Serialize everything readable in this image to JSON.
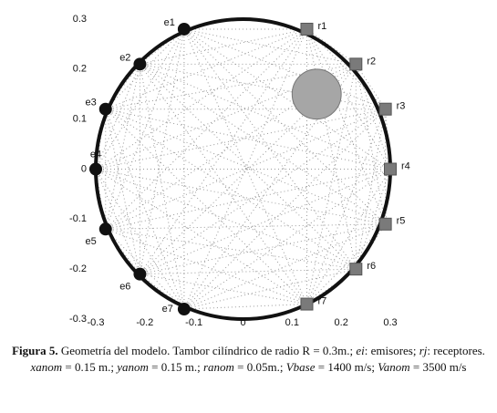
{
  "chart_data": {
    "type": "geometry",
    "xlim": [
      -0.3,
      0.3
    ],
    "ylim": [
      -0.3,
      0.3
    ],
    "xticks": [
      -0.3,
      -0.2,
      -0.1,
      0,
      0.1,
      0.2,
      0.3
    ],
    "yticks": [
      -0.3,
      -0.2,
      -0.1,
      0,
      0.1,
      0.2,
      0.3
    ],
    "radius": 0.3,
    "anomaly": {
      "x": 0.15,
      "y": 0.15,
      "r": 0.05,
      "color": "#a6a6a6"
    },
    "series": [
      {
        "name": "emisores",
        "marker": "circle",
        "color": "#111111",
        "labels": [
          "e1",
          "e2",
          "e3",
          "e4",
          "e5",
          "e6",
          "e7"
        ],
        "x": [
          -0.12,
          -0.21,
          -0.28,
          -0.3,
          -0.28,
          -0.21,
          -0.12
        ],
        "values": [
          0.28,
          0.21,
          0.12,
          0,
          -0.12,
          -0.21,
          -0.28
        ]
      },
      {
        "name": "receptores",
        "marker": "square",
        "color": "#7a7a7a",
        "labels": [
          "r1",
          "r2",
          "r3",
          "r4",
          "r5",
          "r6",
          "r7"
        ],
        "x": [
          0.13,
          0.23,
          0.29,
          0.3,
          0.29,
          0.23,
          0.13
        ],
        "values": [
          0.28,
          0.21,
          0.12,
          0,
          -0.11,
          -0.2,
          -0.27
        ]
      }
    ]
  },
  "caption": [
    {
      "text": "Figura 5.",
      "style": "bold"
    },
    {
      "text": " Geometría del modelo. Tambor cilíndrico de radio R = 0.3m.; ",
      "style": "normal"
    },
    {
      "text": "ei",
      "style": "italic"
    },
    {
      "text": ": emisores; ",
      "style": "normal"
    },
    {
      "text": "rj",
      "style": "italic"
    },
    {
      "text": ": receptores. ",
      "style": "normal"
    },
    {
      "text": "xanom",
      "style": "italic"
    },
    {
      "text": " = 0.15 m.; ",
      "style": "normal"
    },
    {
      "text": "yanom",
      "style": "italic"
    },
    {
      "text": " = 0.15 m.; ",
      "style": "normal"
    },
    {
      "text": "ranom",
      "style": "italic"
    },
    {
      "text": " = 0.05m.; ",
      "style": "normal"
    },
    {
      "text": "Vbase",
      "style": "italic"
    },
    {
      "text": " = 1400 m/s; ",
      "style": "normal"
    },
    {
      "text": "Vanom",
      "style": "italic"
    },
    {
      "text": " = 3500 m/s",
      "style": "normal"
    }
  ]
}
